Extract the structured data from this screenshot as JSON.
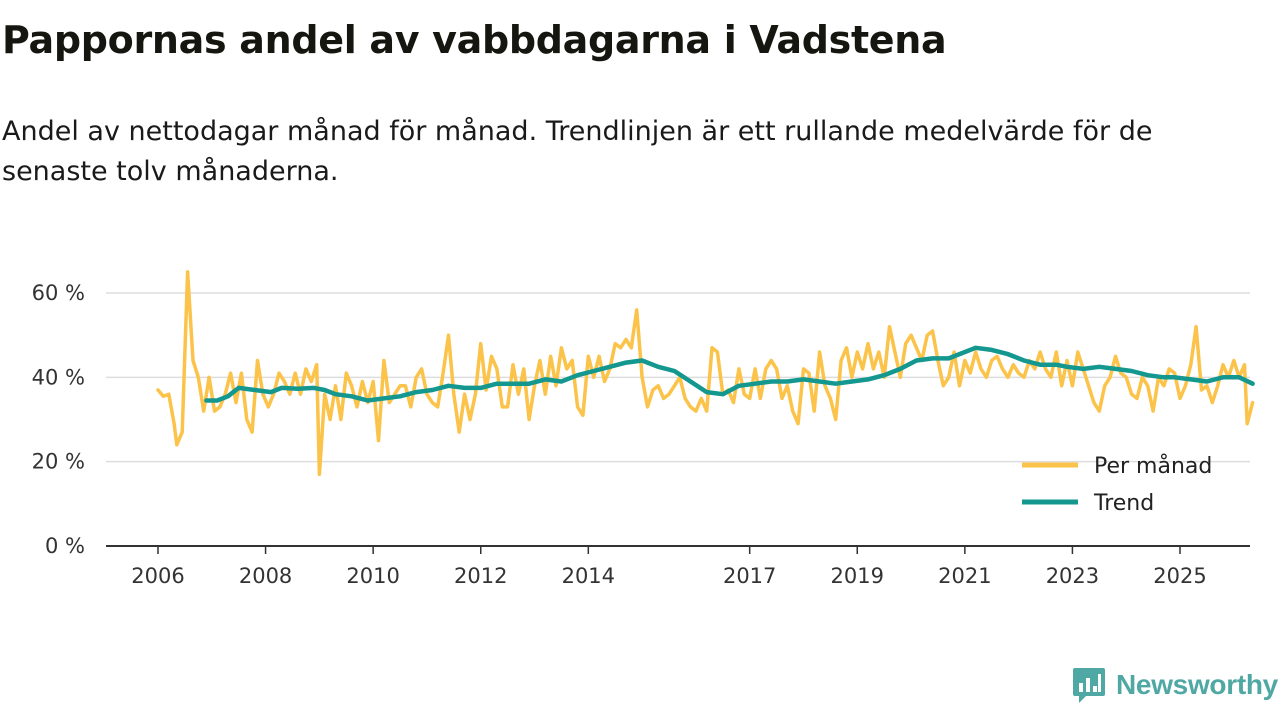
{
  "title": "Pappornas andel av vabbdagarna i Vadstena",
  "subtitle": "Andel av nettodagar månad för månad. Trendlinjen är ett rullande medelvärde för de senaste tolv månaderna.",
  "brand": {
    "name": "Newsworthy",
    "icon": "bar-chart-logo-icon"
  },
  "colors": {
    "monthly": "#fbc34a",
    "trend": "#13978f",
    "grid": "#dddddd",
    "axis": "#333333",
    "brand": "#4fa8a3"
  },
  "chart_data": {
    "type": "line",
    "title": "Pappornas andel av vabbdagarna i Vadstena",
    "xlabel": "",
    "ylabel": "",
    "xlim": [
      2005.9,
      2026.4
    ],
    "ylim": [
      0,
      70
    ],
    "y_ticks": [
      0,
      20,
      40,
      60
    ],
    "y_tick_labels": [
      "0 %",
      "20 %",
      "40 %",
      "60 %"
    ],
    "x_ticks": [
      2006,
      2008,
      2010,
      2012,
      2014,
      2017,
      2019,
      2021,
      2023,
      2025
    ],
    "x_tick_labels": [
      "2006",
      "2008",
      "2010",
      "2012",
      "2014",
      "2017",
      "2019",
      "2021",
      "2023",
      "2025"
    ],
    "grid": true,
    "legend_position": "bottom-right",
    "series": [
      {
        "name": "Per månad",
        "color": "#fbc34a",
        "points": [
          [
            2006.0,
            37
          ],
          [
            2006.1,
            35.5
          ],
          [
            2006.2,
            36
          ],
          [
            2006.3,
            29
          ],
          [
            2006.35,
            24
          ],
          [
            2006.45,
            27
          ],
          [
            2006.55,
            65
          ],
          [
            2006.65,
            44
          ],
          [
            2006.75,
            40
          ],
          [
            2006.85,
            32
          ],
          [
            2006.95,
            40
          ],
          [
            2007.05,
            32
          ],
          [
            2007.15,
            33
          ],
          [
            2007.25,
            36
          ],
          [
            2007.35,
            41
          ],
          [
            2007.45,
            34
          ],
          [
            2007.55,
            41
          ],
          [
            2007.65,
            30
          ],
          [
            2007.75,
            27
          ],
          [
            2007.85,
            44
          ],
          [
            2007.95,
            36
          ],
          [
            2008.05,
            33
          ],
          [
            2008.15,
            36
          ],
          [
            2008.25,
            41
          ],
          [
            2008.35,
            39
          ],
          [
            2008.45,
            36
          ],
          [
            2008.55,
            41
          ],
          [
            2008.65,
            36
          ],
          [
            2008.75,
            42
          ],
          [
            2008.85,
            39
          ],
          [
            2008.95,
            43
          ],
          [
            2009.0,
            17
          ],
          [
            2009.1,
            36
          ],
          [
            2009.2,
            30
          ],
          [
            2009.3,
            38
          ],
          [
            2009.4,
            30
          ],
          [
            2009.5,
            41
          ],
          [
            2009.6,
            38
          ],
          [
            2009.7,
            33
          ],
          [
            2009.8,
            39
          ],
          [
            2009.9,
            34
          ],
          [
            2010.0,
            39
          ],
          [
            2010.1,
            25
          ],
          [
            2010.2,
            44
          ],
          [
            2010.3,
            34
          ],
          [
            2010.4,
            36
          ],
          [
            2010.5,
            38
          ],
          [
            2010.6,
            38
          ],
          [
            2010.7,
            33
          ],
          [
            2010.8,
            40
          ],
          [
            2010.9,
            42
          ],
          [
            2011.0,
            36
          ],
          [
            2011.1,
            34
          ],
          [
            2011.2,
            33
          ],
          [
            2011.3,
            41
          ],
          [
            2011.4,
            50
          ],
          [
            2011.5,
            36
          ],
          [
            2011.6,
            27
          ],
          [
            2011.7,
            36
          ],
          [
            2011.8,
            30
          ],
          [
            2011.9,
            36
          ],
          [
            2012.0,
            48
          ],
          [
            2012.1,
            37
          ],
          [
            2012.2,
            45
          ],
          [
            2012.3,
            42
          ],
          [
            2012.4,
            33
          ],
          [
            2012.5,
            33
          ],
          [
            2012.6,
            43
          ],
          [
            2012.7,
            36
          ],
          [
            2012.8,
            42
          ],
          [
            2012.9,
            30
          ],
          [
            2013.0,
            38
          ],
          [
            2013.1,
            44
          ],
          [
            2013.2,
            36
          ],
          [
            2013.3,
            45
          ],
          [
            2013.4,
            38
          ],
          [
            2013.5,
            47
          ],
          [
            2013.6,
            42
          ],
          [
            2013.7,
            44
          ],
          [
            2013.8,
            33
          ],
          [
            2013.9,
            31
          ],
          [
            2014.0,
            45
          ],
          [
            2014.1,
            40
          ],
          [
            2014.2,
            45
          ],
          [
            2014.3,
            39
          ],
          [
            2014.4,
            42
          ],
          [
            2014.5,
            48
          ],
          [
            2014.6,
            47
          ],
          [
            2014.7,
            49
          ],
          [
            2014.8,
            47
          ],
          [
            2014.9,
            56
          ],
          [
            2015.0,
            40
          ],
          [
            2015.1,
            33
          ],
          [
            2015.2,
            37
          ],
          [
            2015.3,
            38
          ],
          [
            2015.4,
            35
          ],
          [
            2015.5,
            36
          ],
          [
            2015.6,
            38
          ],
          [
            2015.7,
            40
          ],
          [
            2015.8,
            35
          ],
          [
            2015.9,
            33
          ],
          [
            2016.0,
            32
          ],
          [
            2016.1,
            35
          ],
          [
            2016.2,
            32
          ],
          [
            2016.3,
            47
          ],
          [
            2016.4,
            46
          ],
          [
            2016.5,
            36
          ],
          [
            2016.6,
            37
          ],
          [
            2016.7,
            34
          ],
          [
            2016.8,
            42
          ],
          [
            2016.9,
            36
          ],
          [
            2017.0,
            35
          ],
          [
            2017.1,
            42
          ],
          [
            2017.2,
            35
          ],
          [
            2017.3,
            42
          ],
          [
            2017.4,
            44
          ],
          [
            2017.5,
            42
          ],
          [
            2017.6,
            35
          ],
          [
            2017.7,
            38
          ],
          [
            2017.8,
            32
          ],
          [
            2017.9,
            29
          ],
          [
            2018.0,
            42
          ],
          [
            2018.1,
            41
          ],
          [
            2018.2,
            32
          ],
          [
            2018.3,
            46
          ],
          [
            2018.4,
            38
          ],
          [
            2018.5,
            35
          ],
          [
            2018.6,
            30
          ],
          [
            2018.7,
            44
          ],
          [
            2018.8,
            47
          ],
          [
            2018.9,
            40
          ],
          [
            2019.0,
            46
          ],
          [
            2019.1,
            42
          ],
          [
            2019.2,
            48
          ],
          [
            2019.3,
            42
          ],
          [
            2019.4,
            46
          ],
          [
            2019.5,
            40
          ],
          [
            2019.6,
            52
          ],
          [
            2019.7,
            46
          ],
          [
            2019.8,
            40
          ],
          [
            2019.9,
            48
          ],
          [
            2020.0,
            50
          ],
          [
            2020.1,
            47
          ],
          [
            2020.2,
            44
          ],
          [
            2020.3,
            50
          ],
          [
            2020.4,
            51
          ],
          [
            2020.5,
            44
          ],
          [
            2020.6,
            38
          ],
          [
            2020.7,
            40
          ],
          [
            2020.8,
            46
          ],
          [
            2020.9,
            38
          ],
          [
            2021.0,
            44
          ],
          [
            2021.1,
            41
          ],
          [
            2021.2,
            46
          ],
          [
            2021.3,
            42
          ],
          [
            2021.4,
            40
          ],
          [
            2021.5,
            44
          ],
          [
            2021.6,
            45
          ],
          [
            2021.7,
            42
          ],
          [
            2021.8,
            40
          ],
          [
            2021.9,
            43
          ],
          [
            2022.0,
            41
          ],
          [
            2022.1,
            40
          ],
          [
            2022.2,
            44
          ],
          [
            2022.3,
            42
          ],
          [
            2022.4,
            46
          ],
          [
            2022.5,
            42
          ],
          [
            2022.6,
            40
          ],
          [
            2022.7,
            46
          ],
          [
            2022.8,
            38
          ],
          [
            2022.9,
            44
          ],
          [
            2023.0,
            38
          ],
          [
            2023.1,
            46
          ],
          [
            2023.2,
            42
          ],
          [
            2023.3,
            38
          ],
          [
            2023.4,
            34
          ],
          [
            2023.5,
            32
          ],
          [
            2023.6,
            38
          ],
          [
            2023.7,
            40
          ],
          [
            2023.8,
            45
          ],
          [
            2023.9,
            41
          ],
          [
            2024.0,
            40
          ],
          [
            2024.1,
            36
          ],
          [
            2024.2,
            35
          ],
          [
            2024.3,
            40
          ],
          [
            2024.4,
            38
          ],
          [
            2024.5,
            32
          ],
          [
            2024.6,
            40
          ],
          [
            2024.7,
            38
          ],
          [
            2024.8,
            42
          ],
          [
            2024.9,
            41
          ],
          [
            2025.0,
            35
          ],
          [
            2025.1,
            38
          ],
          [
            2025.2,
            43
          ],
          [
            2025.3,
            52
          ],
          [
            2025.4,
            37
          ],
          [
            2025.5,
            38
          ],
          [
            2025.6,
            34
          ],
          [
            2025.7,
            38
          ],
          [
            2025.8,
            43
          ],
          [
            2025.9,
            40
          ],
          [
            2026.0,
            44
          ],
          [
            2026.1,
            40
          ],
          [
            2026.2,
            43
          ],
          [
            2026.25,
            29
          ],
          [
            2026.35,
            34
          ]
        ]
      },
      {
        "name": "Trend",
        "color": "#13978f",
        "points": [
          [
            2006.9,
            34.5
          ],
          [
            2007.1,
            34.5
          ],
          [
            2007.3,
            35.5
          ],
          [
            2007.5,
            37.5
          ],
          [
            2007.8,
            37
          ],
          [
            2008.1,
            36.5
          ],
          [
            2008.3,
            37.5
          ],
          [
            2008.6,
            37.3
          ],
          [
            2008.9,
            37.5
          ],
          [
            2009.1,
            37
          ],
          [
            2009.3,
            36
          ],
          [
            2009.6,
            35.5
          ],
          [
            2009.9,
            34.5
          ],
          [
            2010.2,
            35
          ],
          [
            2010.5,
            35.5
          ],
          [
            2010.8,
            36.5
          ],
          [
            2011.1,
            37
          ],
          [
            2011.4,
            38
          ],
          [
            2011.7,
            37.5
          ],
          [
            2012.0,
            37.5
          ],
          [
            2012.3,
            38.5
          ],
          [
            2012.6,
            38.5
          ],
          [
            2012.9,
            38.5
          ],
          [
            2013.2,
            39.5
          ],
          [
            2013.5,
            39
          ],
          [
            2013.8,
            40.5
          ],
          [
            2014.1,
            41.5
          ],
          [
            2014.4,
            42.5
          ],
          [
            2014.7,
            43.5
          ],
          [
            2015.0,
            44
          ],
          [
            2015.3,
            42.5
          ],
          [
            2015.6,
            41.5
          ],
          [
            2015.9,
            39
          ],
          [
            2016.2,
            36.5
          ],
          [
            2016.5,
            36
          ],
          [
            2016.8,
            38
          ],
          [
            2017.1,
            38.5
          ],
          [
            2017.4,
            39
          ],
          [
            2017.7,
            39
          ],
          [
            2018.0,
            39.5
          ],
          [
            2018.3,
            39
          ],
          [
            2018.6,
            38.5
          ],
          [
            2018.9,
            39
          ],
          [
            2019.2,
            39.5
          ],
          [
            2019.5,
            40.5
          ],
          [
            2019.8,
            42
          ],
          [
            2020.1,
            44
          ],
          [
            2020.4,
            44.5
          ],
          [
            2020.7,
            44.5
          ],
          [
            2020.9,
            45.5
          ],
          [
            2021.2,
            47
          ],
          [
            2021.5,
            46.5
          ],
          [
            2021.8,
            45.5
          ],
          [
            2022.1,
            44
          ],
          [
            2022.4,
            43
          ],
          [
            2022.7,
            43
          ],
          [
            2022.9,
            42.5
          ],
          [
            2023.2,
            42
          ],
          [
            2023.5,
            42.5
          ],
          [
            2023.8,
            42
          ],
          [
            2024.1,
            41.5
          ],
          [
            2024.4,
            40.5
          ],
          [
            2024.7,
            40
          ],
          [
            2024.9,
            40
          ],
          [
            2025.2,
            39.5
          ],
          [
            2025.5,
            39
          ],
          [
            2025.8,
            40
          ],
          [
            2026.1,
            40
          ],
          [
            2026.35,
            38.5
          ]
        ]
      }
    ]
  }
}
